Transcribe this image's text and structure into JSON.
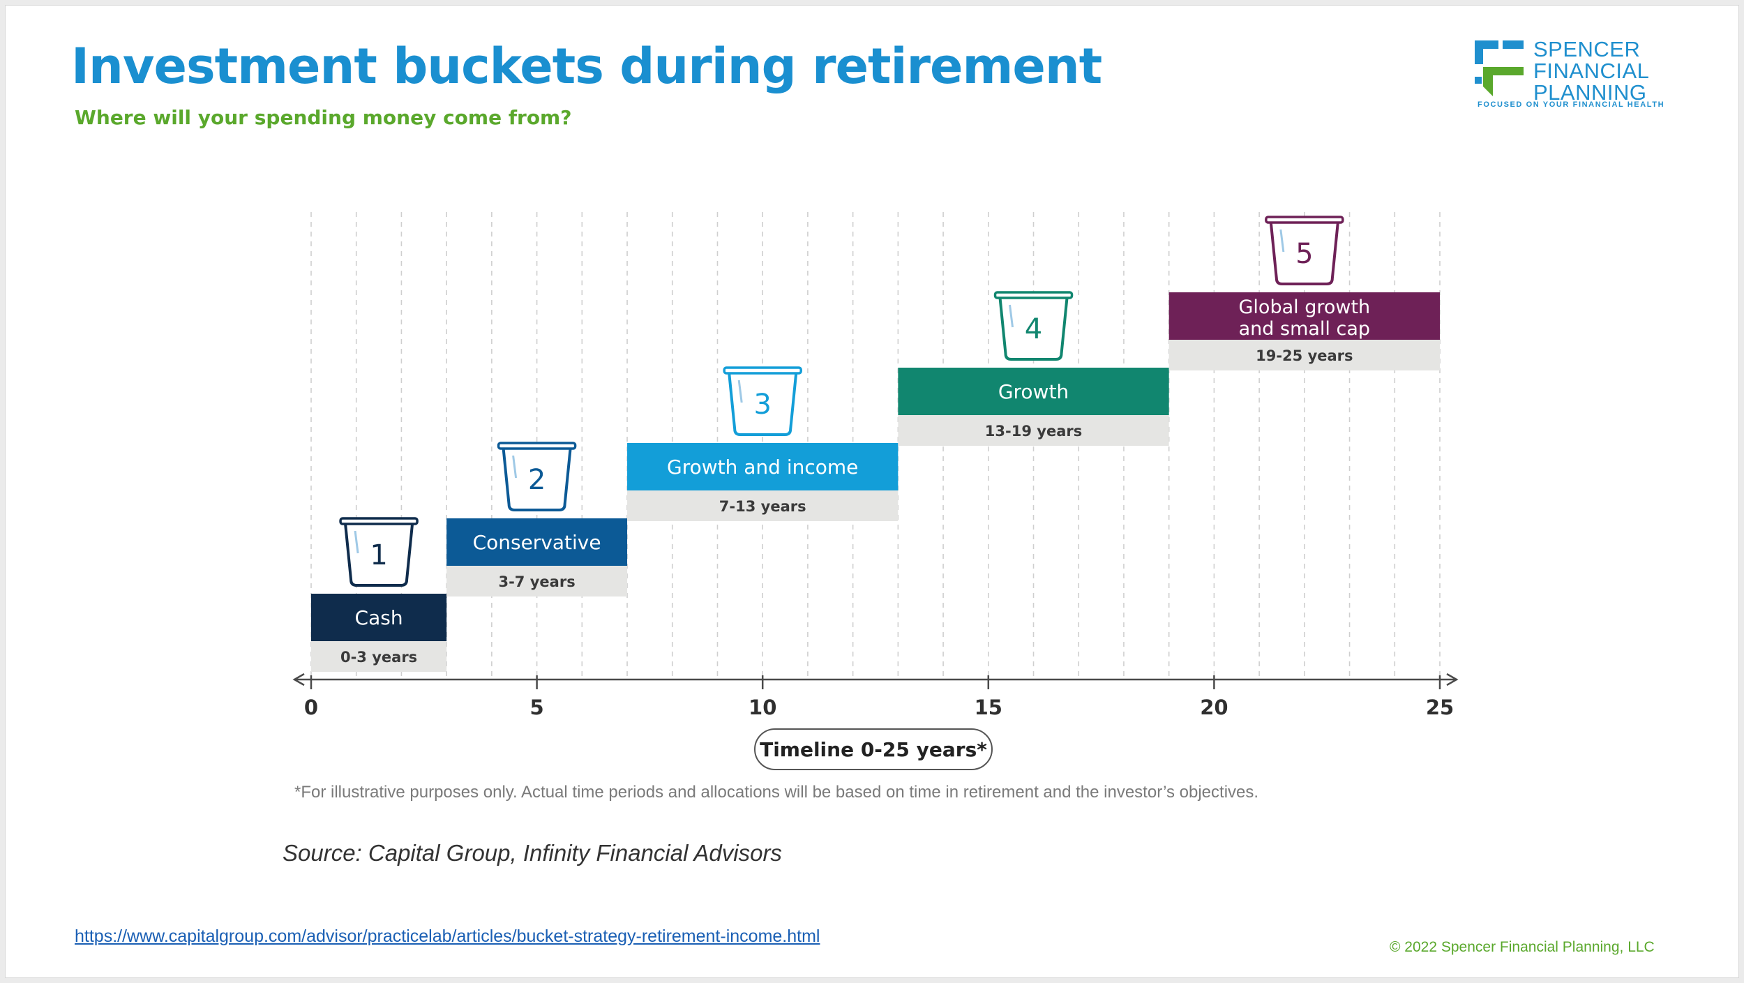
{
  "slide": {
    "title": "Investment buckets during retirement",
    "subtitle": "Where will your spending money come from?",
    "footnote": "*For illustrative purposes only. Actual time periods and allocations will be based on time in retirement and the investor’s objectives.",
    "source": "Source: Capital Group, Infinity Financial Advisors",
    "url": "https://www.capitalgroup.com/advisor/practicelab/articles/bucket-strategy-retirement-income.html",
    "copyright": "©  2022 Spencer Financial Planning, LLC"
  },
  "logo": {
    "line1": "SPENCER",
    "line2": "FINANCIAL",
    "line3": "PLANNING",
    "tagline": "FOCUSED ON YOUR FINANCIAL HEALTH",
    "colors": {
      "blue": "#1f8fce",
      "green": "#5aa82c"
    },
    "icon": "sfp-logo-icon"
  },
  "chart_data": {
    "type": "bar",
    "xlabel": "Timeline 0-25 years*",
    "xlim": [
      0,
      25
    ],
    "xticks": [
      0,
      5,
      10,
      15,
      20,
      25
    ],
    "grid": true,
    "buckets": [
      {
        "number": "1",
        "name": "Cash",
        "period": "0-3 years",
        "start": 0,
        "end": 3,
        "color": "#0f2c4c"
      },
      {
        "number": "2",
        "name": "Conservative",
        "period": "3-7 years",
        "start": 3,
        "end": 7,
        "color": "#0c5a96"
      },
      {
        "number": "3",
        "name": "Growth and income",
        "period": "7-13 years",
        "start": 7,
        "end": 13,
        "color": "#139ed8"
      },
      {
        "number": "4",
        "name": "Growth",
        "period": "13-19 years",
        "start": 13,
        "end": 19,
        "color": "#11866f"
      },
      {
        "number": "5",
        "name": "Global growth\nand small cap",
        "period": "19-25 years",
        "start": 19,
        "end": 25,
        "color": "#6e2157"
      }
    ]
  }
}
